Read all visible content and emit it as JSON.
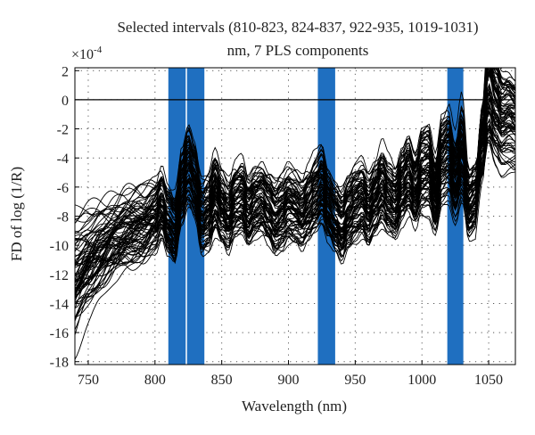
{
  "chart_data": {
    "type": "line",
    "title_lines": [
      "Selected intervals (810-823, 824-837, 922-935, 1019-1031)",
      "nm, 7 PLS components"
    ],
    "xlabel": "Wavelength (nm)",
    "ylabel": "FD of log (1/R)",
    "y_exponent_prefix": "×10",
    "y_exponent_power": "-4",
    "xlim": [
      740,
      1070
    ],
    "ylim": [
      -18.2,
      2.2
    ],
    "x_ticks": [
      750,
      800,
      850,
      900,
      950,
      1000,
      1050
    ],
    "x_tick_labels": [
      "750",
      "800",
      "850",
      "900",
      "950",
      "1000",
      "1050"
    ],
    "y_ticks": [
      2,
      0,
      -2,
      -4,
      -6,
      -8,
      -10,
      -12,
      -14,
      -16,
      -18
    ],
    "y_tick_labels": [
      "2",
      "0",
      "-2",
      "-4",
      "-6",
      "-8",
      "-10",
      "-12",
      "-14",
      "-16",
      "-18"
    ],
    "grid": "dotted",
    "zero_line": 0,
    "selected_intervals": [
      [
        810,
        823
      ],
      [
        824,
        837
      ],
      [
        922,
        935
      ],
      [
        1019,
        1031
      ]
    ],
    "interval_color": "#1f6fc0",
    "line_color": "#000000",
    "series_count": 80,
    "mean_spectrum": {
      "x": [
        740,
        750,
        760,
        770,
        780,
        790,
        800,
        805,
        810,
        815,
        820,
        825,
        830,
        835,
        840,
        845,
        850,
        855,
        860,
        865,
        870,
        875,
        880,
        885,
        890,
        895,
        900,
        905,
        910,
        915,
        920,
        925,
        930,
        935,
        940,
        945,
        950,
        955,
        960,
        965,
        970,
        975,
        980,
        985,
        990,
        995,
        1000,
        1005,
        1010,
        1015,
        1020,
        1025,
        1030,
        1035,
        1040,
        1045,
        1050,
        1055,
        1060,
        1065,
        1070
      ],
      "y": [
        -9.5,
        -9.2,
        -9.0,
        -8.8,
        -8.6,
        -8.4,
        -7.8,
        -7.0,
        -8.2,
        -8.8,
        -6.0,
        -4.6,
        -5.6,
        -8.0,
        -7.6,
        -6.2,
        -7.2,
        -7.8,
        -6.8,
        -6.6,
        -7.6,
        -7.0,
        -6.8,
        -7.4,
        -8.0,
        -7.6,
        -7.0,
        -7.2,
        -7.6,
        -7.0,
        -6.4,
        -5.8,
        -7.2,
        -8.0,
        -8.6,
        -7.6,
        -7.0,
        -6.6,
        -7.4,
        -6.6,
        -5.8,
        -6.6,
        -7.0,
        -5.8,
        -5.2,
        -6.2,
        -4.8,
        -4.6,
        -6.4,
        -4.0,
        -3.6,
        -5.4,
        -3.4,
        -7.0,
        -6.6,
        -3.2,
        0.6,
        -0.8,
        -1.6,
        -1.4,
        -1.6
      ]
    }
  }
}
